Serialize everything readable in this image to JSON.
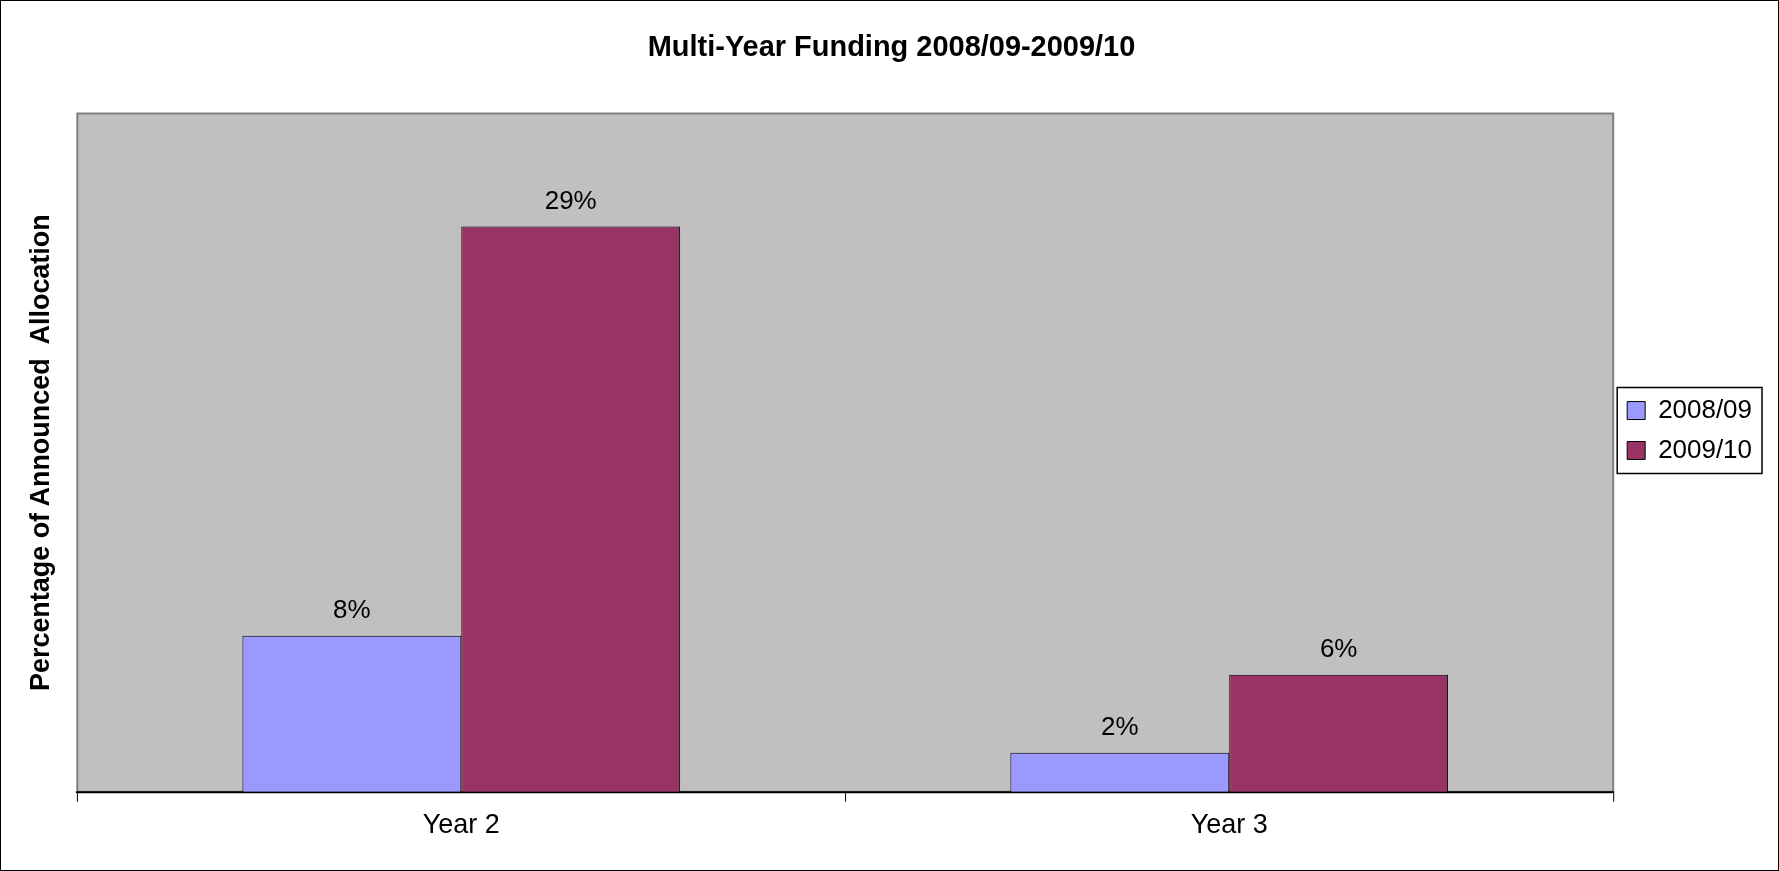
{
  "chart_data": {
    "type": "bar",
    "title": "Multi-Year Funding 2008/09-2009/10",
    "ylabel": "Percentage of Announced  Allocation",
    "categories": [
      "Year 2",
      "Year 3"
    ],
    "series": [
      {
        "name": "2008/09",
        "color": "#9999ff",
        "values": [
          8,
          2
        ],
        "value_labels": [
          "8%",
          "2%"
        ]
      },
      {
        "name": "2009/10",
        "color": "#993366",
        "values": [
          29,
          6
        ],
        "value_labels": [
          "29%",
          "6%"
        ]
      }
    ],
    "grid": false,
    "legend": "right"
  }
}
